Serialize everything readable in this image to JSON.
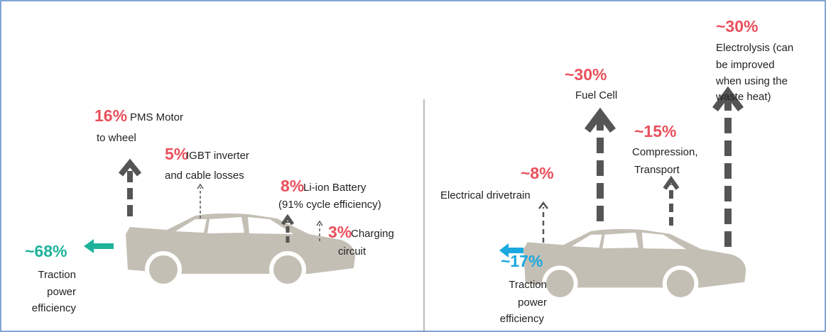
{
  "left": {
    "losses": [
      {
        "value": "16%",
        "lines": [
          "PMS Motor",
          "to wheel"
        ]
      },
      {
        "value": "5%",
        "lines": [
          "IGBT inverter",
          "and cable losses"
        ]
      },
      {
        "value": "8%",
        "lines": [
          "Li-ion Battery",
          "(91% cycle efficiency)"
        ]
      },
      {
        "value": "3%",
        "lines": [
          "Charging",
          "circuit"
        ]
      }
    ],
    "efficiency": {
      "value": "~68%",
      "lines": [
        "Traction",
        "power",
        "efficiency"
      ]
    }
  },
  "right": {
    "losses": [
      {
        "value": "~8%",
        "lines": [
          "Electrical drivetrain"
        ]
      },
      {
        "value": "~30%",
        "lines": [
          "Fuel Cell"
        ]
      },
      {
        "value": "~15%",
        "lines": [
          "Compression,",
          "Transport"
        ]
      },
      {
        "value": "~30%",
        "lines": [
          "Electrolysis (can",
          "be improved",
          "when using the",
          "waste heat)"
        ]
      }
    ],
    "efficiency": {
      "value": "~17%",
      "lines": [
        "Traction",
        "power",
        "efficiency"
      ]
    }
  }
}
